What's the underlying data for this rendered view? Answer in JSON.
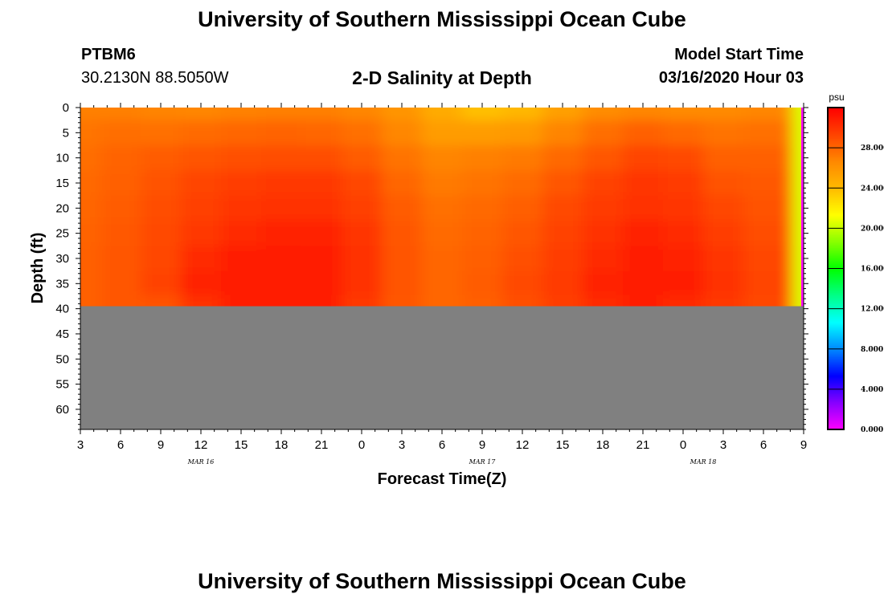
{
  "header": {
    "title": "University of Southern Mississippi Ocean Cube",
    "station_id": "PTBM6",
    "coordinates": "30.2130N 88.5050W",
    "plot_title": "2-D Salinity at Depth",
    "start_label": "Model Start Time",
    "start_time": "03/16/2020 Hour 03"
  },
  "footer": {
    "title": "University of Southern Mississippi Ocean Cube"
  },
  "chart_data": {
    "type": "heatmap",
    "title": "2-D Salinity at Depth",
    "xlabel": "Forecast Time(Z)",
    "ylabel": "Depth (ft)",
    "x_tick_labels": [
      "3",
      "6",
      "9",
      "12",
      "15",
      "18",
      "21",
      "0",
      "3",
      "6",
      "9",
      "12",
      "15",
      "18",
      "21",
      "0",
      "3",
      "6",
      "9"
    ],
    "date_labels": [
      {
        "label": "MAR 16",
        "hour_index": 3
      },
      {
        "label": "MAR 17",
        "hour_index": 10
      },
      {
        "label": "MAR 18",
        "hour_index": 15.5
      }
    ],
    "y_ticks": [
      0,
      5,
      10,
      15,
      20,
      25,
      30,
      35,
      40,
      45,
      50,
      55,
      60
    ],
    "ylim": [
      0,
      64
    ],
    "bottom_depth_ft": 39.5,
    "hours_from_start": [
      0,
      3,
      6,
      9,
      12,
      15,
      18,
      21,
      24,
      27,
      30,
      33,
      36,
      39,
      42,
      45,
      48,
      51,
      54
    ],
    "depths_ft": [
      0,
      5,
      10,
      15,
      20,
      25,
      30,
      35,
      39.5
    ],
    "salinity_psu": [
      [
        27.0,
        27.4,
        27.7,
        27.9,
        28.0,
        28.1,
        28.2,
        28.2,
        28.2
      ],
      [
        27.0,
        27.7,
        28.1,
        28.2,
        28.4,
        28.5,
        28.6,
        28.6,
        28.6
      ],
      [
        26.8,
        27.6,
        28.4,
        28.8,
        29.0,
        29.1,
        29.2,
        29.4,
        28.8
      ],
      [
        26.7,
        27.8,
        28.7,
        29.3,
        29.5,
        29.8,
        30.4,
        30.7,
        30.0
      ],
      [
        26.9,
        28.0,
        28.9,
        29.6,
        29.9,
        30.4,
        30.8,
        31.0,
        30.8
      ],
      [
        27.0,
        28.1,
        29.0,
        29.8,
        30.1,
        30.7,
        31.0,
        31.0,
        31.0
      ],
      [
        27.0,
        28.0,
        29.0,
        29.8,
        30.1,
        30.6,
        30.9,
        31.0,
        30.8
      ],
      [
        26.7,
        27.6,
        28.4,
        29.2,
        29.5,
        29.9,
        30.1,
        30.1,
        29.8
      ],
      [
        26.0,
        26.7,
        27.5,
        28.0,
        28.4,
        28.6,
        28.7,
        28.7,
        28.6
      ],
      [
        24.8,
        25.6,
        26.8,
        27.2,
        27.6,
        27.8,
        28.0,
        28.0,
        28.0
      ],
      [
        23.8,
        25.6,
        27.0,
        27.5,
        27.9,
        28.1,
        28.3,
        28.4,
        28.3
      ],
      [
        24.2,
        25.8,
        27.2,
        27.8,
        28.3,
        28.6,
        28.9,
        29.1,
        28.9
      ],
      [
        25.4,
        26.8,
        27.9,
        28.6,
        29.1,
        29.4,
        29.6,
        29.7,
        29.6
      ],
      [
        26.4,
        27.7,
        28.6,
        29.4,
        29.7,
        30.1,
        30.3,
        30.6,
        30.4
      ],
      [
        26.7,
        28.2,
        29.3,
        29.9,
        30.1,
        30.6,
        30.8,
        31.0,
        30.8
      ],
      [
        26.5,
        27.9,
        29.1,
        29.7,
        29.9,
        30.3,
        30.6,
        30.9,
        30.4
      ],
      [
        26.5,
        27.5,
        28.2,
        28.8,
        29.2,
        29.6,
        29.9,
        30.0,
        29.8
      ],
      [
        26.7,
        27.6,
        28.2,
        28.5,
        28.8,
        29.0,
        29.2,
        29.3,
        29.2
      ],
      [
        20.5,
        20.5,
        20.5,
        20.5,
        20.5,
        20.5,
        20.5,
        20.5,
        20.5
      ]
    ],
    "colorbar": {
      "unit": "psu",
      "min": 0,
      "max": 32,
      "tick_labels": [
        "0.000",
        "4.000",
        "8.000",
        "12.000",
        "16.000",
        "20.000",
        "24.000",
        "28.000"
      ],
      "tick_values": [
        0,
        4,
        8,
        12,
        16,
        20,
        24,
        28
      ],
      "colors": [
        "#ff00ff",
        "#8800ff",
        "#0000ff",
        "#0088ff",
        "#00ffff",
        "#00ff88",
        "#00ff00",
        "#88ff00",
        "#ffff00",
        "#ffbb00",
        "#ff8800",
        "#ff4400",
        "#ff0000"
      ]
    },
    "land_color": "#808080",
    "grid": false,
    "legend_position": "right"
  }
}
